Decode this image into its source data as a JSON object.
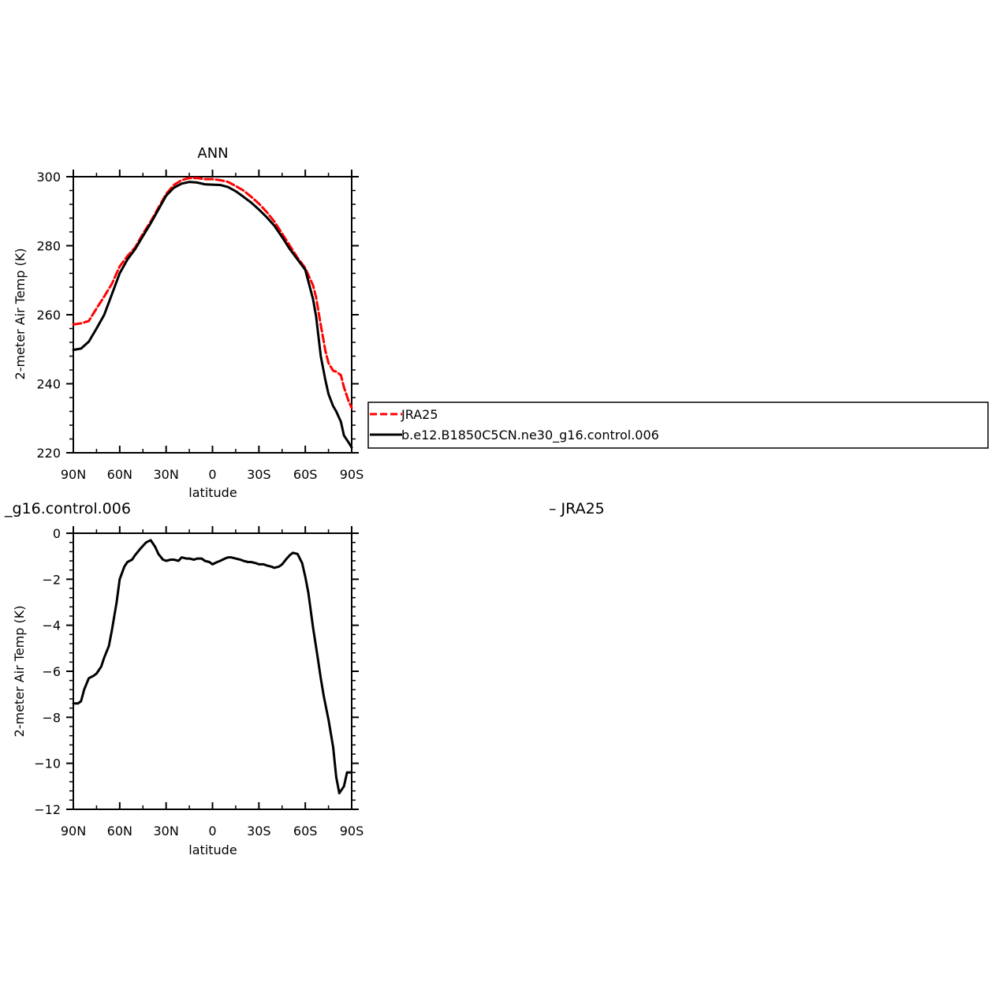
{
  "colors": {
    "obs": "#ff0000",
    "model": "#000000"
  },
  "top_left_text": "_g16.control.006",
  "top_right_text": "– JRA25",
  "legend": {
    "entries": [
      {
        "label": "JRA25",
        "color": "#ff0000",
        "style": "dashed"
      },
      {
        "label": "b.e12.B1850C5CN.ne30_g16.control.006",
        "color": "#000000",
        "style": "solid"
      }
    ]
  },
  "chart_data": [
    {
      "type": "line",
      "title": "ANN",
      "xlabel": "latitude",
      "ylabel": "2-meter Air Temp (K)",
      "xlim": [
        90,
        -90
      ],
      "ylim": [
        220,
        300
      ],
      "xticks": [
        90,
        60,
        30,
        0,
        -30,
        -60,
        -90
      ],
      "xtick_labels": [
        "90N",
        "60N",
        "30N",
        "0",
        "30S",
        "60S",
        "90S"
      ],
      "yticks": [
        220,
        240,
        260,
        280,
        300
      ],
      "ytick_labels": [
        "220",
        "240",
        "260",
        "280",
        "300"
      ],
      "series": [
        {
          "name": "JRA25",
          "color": "#ff0000",
          "style": "dashed",
          "x": [
            90,
            85,
            80,
            75,
            70,
            65,
            60,
            55,
            50,
            45,
            40,
            35,
            30,
            25,
            20,
            15,
            10,
            5,
            0,
            -5,
            -10,
            -15,
            -20,
            -25,
            -30,
            -35,
            -40,
            -45,
            -50,
            -55,
            -60,
            -65,
            -67,
            -70,
            -73,
            -75,
            -78,
            -80,
            -83,
            -85,
            -88,
            -90
          ],
          "y": [
            257.2,
            257.5,
            258.2,
            261.8,
            265.3,
            269.0,
            274.0,
            277.0,
            279.5,
            283.5,
            287.0,
            291.0,
            295.0,
            297.6,
            299.0,
            299.6,
            299.6,
            299.3,
            299.3,
            299.0,
            298.5,
            297.3,
            296.0,
            294.2,
            292.2,
            289.8,
            287.0,
            283.5,
            280.0,
            276.5,
            273.5,
            268.5,
            265.0,
            257.0,
            249.5,
            246.0,
            243.8,
            243.5,
            242.5,
            239.0,
            235.0,
            233.0
          ]
        },
        {
          "name": "b.e12.B1850C5CN.ne30_g16.control.006",
          "color": "#000000",
          "style": "solid",
          "x": [
            90,
            85,
            80,
            75,
            70,
            65,
            60,
            55,
            50,
            45,
            40,
            35,
            30,
            25,
            20,
            15,
            10,
            5,
            0,
            -5,
            -10,
            -15,
            -20,
            -25,
            -30,
            -35,
            -40,
            -45,
            -50,
            -55,
            -60,
            -65,
            -67,
            -70,
            -73,
            -75,
            -78,
            -80,
            -83,
            -85,
            -88,
            -90
          ],
          "y": [
            249.8,
            250.2,
            252.2,
            256.0,
            260.0,
            266.0,
            272.0,
            276.0,
            279.0,
            282.8,
            286.5,
            290.5,
            294.5,
            296.8,
            298.0,
            298.5,
            298.3,
            297.8,
            297.7,
            297.6,
            297.0,
            295.8,
            294.2,
            292.5,
            290.5,
            288.3,
            285.8,
            282.5,
            279.0,
            276.0,
            273.0,
            264.5,
            259.5,
            248.0,
            241.0,
            237.0,
            233.5,
            232.0,
            229.0,
            225.0,
            223.0,
            221.5
          ]
        }
      ]
    },
    {
      "type": "line",
      "title": "",
      "xlabel": "latitude",
      "ylabel": "2-meter Air Temp (K)",
      "xlim": [
        90,
        -90
      ],
      "ylim": [
        -12,
        0
      ],
      "xticks": [
        90,
        60,
        30,
        0,
        -30,
        -60,
        -90
      ],
      "xtick_labels": [
        "90N",
        "60N",
        "30N",
        "0",
        "30S",
        "60S",
        "90S"
      ],
      "yticks": [
        -12,
        -10,
        -8,
        -6,
        -4,
        -2,
        0
      ],
      "ytick_labels": [
        "−12",
        "−10",
        "−8",
        "−6",
        "−4",
        "−2",
        "0"
      ],
      "series": [
        {
          "color": "#000000",
          "style": "solid",
          "x": [
            90,
            87,
            85,
            83,
            80,
            77,
            75,
            72,
            70,
            67,
            65,
            62,
            60,
            57,
            55,
            52,
            50,
            47,
            45,
            43,
            40,
            37,
            35,
            32,
            30,
            27,
            25,
            22,
            20,
            17,
            15,
            12,
            10,
            7,
            5,
            2,
            0,
            -3,
            -5,
            -8,
            -10,
            -12,
            -15,
            -18,
            -20,
            -23,
            -25,
            -28,
            -30,
            -33,
            -35,
            -38,
            -40,
            -43,
            -45,
            -48,
            -50,
            -52,
            -55,
            -58,
            -60,
            -62,
            -65,
            -68,
            -70,
            -72,
            -75,
            -78,
            -80,
            -82,
            -85,
            -87,
            -90
          ],
          "y": [
            -7.4,
            -7.4,
            -7.3,
            -6.8,
            -6.3,
            -6.2,
            -6.1,
            -5.8,
            -5.4,
            -4.9,
            -4.2,
            -3.0,
            -2.0,
            -1.45,
            -1.25,
            -1.15,
            -0.95,
            -0.7,
            -0.55,
            -0.4,
            -0.3,
            -0.6,
            -0.9,
            -1.15,
            -1.2,
            -1.15,
            -1.15,
            -1.2,
            -1.05,
            -1.1,
            -1.1,
            -1.15,
            -1.1,
            -1.1,
            -1.2,
            -1.25,
            -1.35,
            -1.25,
            -1.2,
            -1.1,
            -1.05,
            -1.05,
            -1.1,
            -1.15,
            -1.2,
            -1.25,
            -1.25,
            -1.3,
            -1.35,
            -1.35,
            -1.4,
            -1.45,
            -1.5,
            -1.45,
            -1.35,
            -1.1,
            -0.95,
            -0.85,
            -0.9,
            -1.3,
            -1.9,
            -2.6,
            -4.1,
            -5.4,
            -6.3,
            -7.1,
            -8.1,
            -9.3,
            -10.6,
            -11.3,
            -11.0,
            -10.4,
            -10.4
          ]
        }
      ]
    }
  ]
}
